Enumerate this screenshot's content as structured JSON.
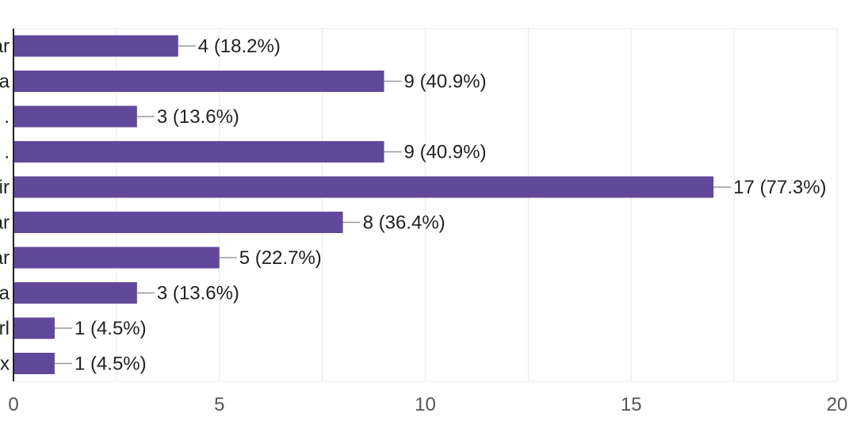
{
  "chart_data": {
    "type": "bar",
    "orientation": "horizontal",
    "title": "",
    "xlabel": "",
    "ylabel": "",
    "categories": [
      "ar",
      "a",
      ".",
      ".",
      "ir",
      "ar",
      "ar",
      "a",
      "rl",
      "x"
    ],
    "values": [
      4,
      9,
      3,
      9,
      17,
      8,
      5,
      3,
      1,
      1
    ],
    "data_labels": [
      "4 (18.2%)",
      "9 (40.9%)",
      "3 (13.6%)",
      "9 (40.9%)",
      "17 (77.3%)",
      "8 (36.4%)",
      "5 (22.7%)",
      "3 (13.6%)",
      "1 (4.5%)",
      "1 (4.5%)"
    ],
    "xlim": [
      0,
      20
    ],
    "x_ticks": [
      "0",
      "5",
      "10",
      "15",
      "20"
    ],
    "grid": true,
    "legend": "none",
    "colors": {
      "bar": "#62489b",
      "grid": "#e8e8e8",
      "axis": "#222222",
      "leader": "#999999"
    }
  }
}
